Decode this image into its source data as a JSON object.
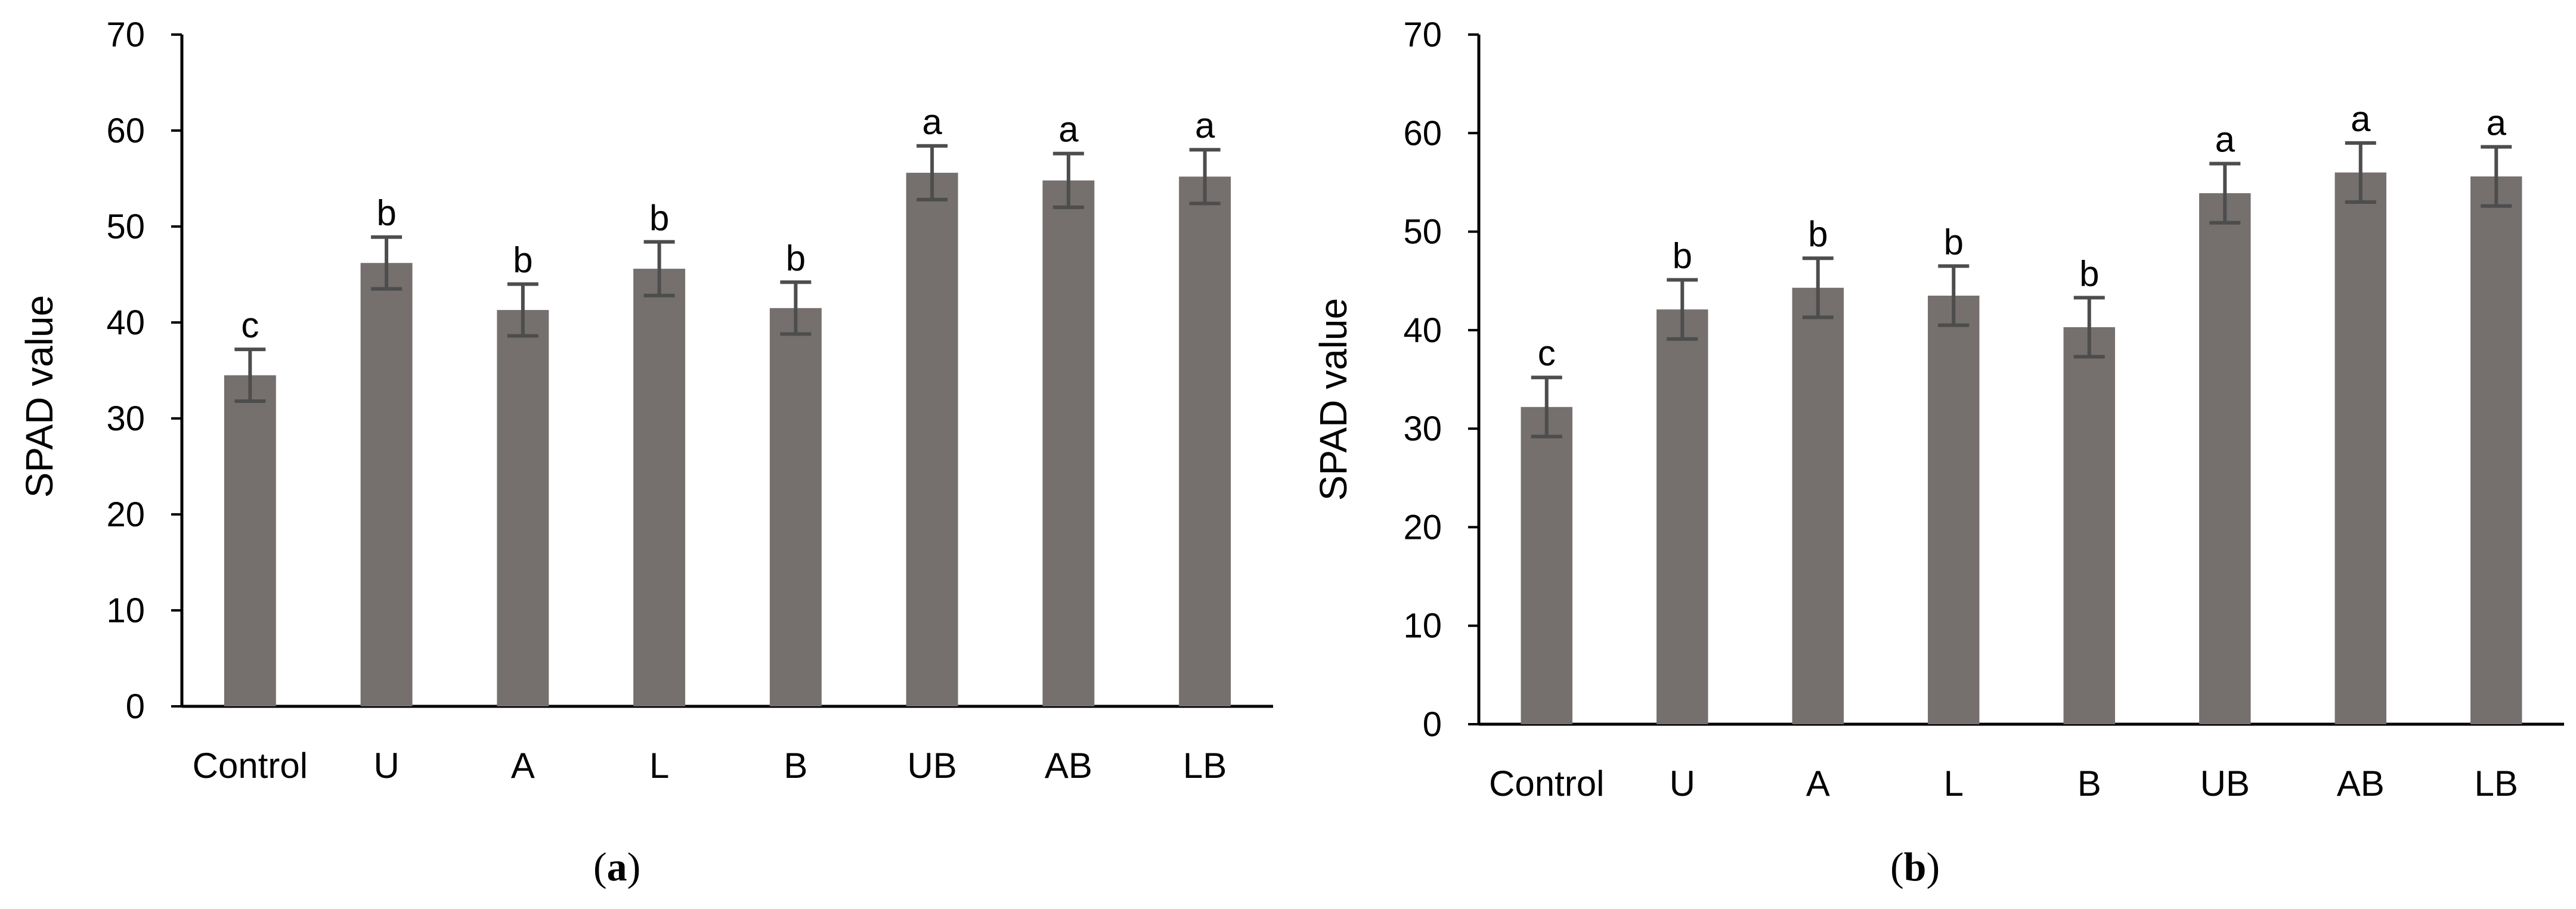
{
  "chart_data": [
    {
      "type": "bar",
      "panel_label": "a",
      "ylabel": "SPAD value",
      "ylim": [
        0,
        70
      ],
      "yticks": [
        0,
        10,
        20,
        30,
        40,
        50,
        60,
        70
      ],
      "categories": [
        "Control",
        "U",
        "A",
        "L",
        "B",
        "UB",
        "AB",
        "LB"
      ],
      "values": [
        34.5,
        46.2,
        41.3,
        45.6,
        41.5,
        55.6,
        54.8,
        55.2
      ],
      "errors": [
        2.7,
        2.7,
        2.7,
        2.8,
        2.7,
        2.8,
        2.8,
        2.8
      ],
      "letters": [
        "c",
        "b",
        "b",
        "b",
        "b",
        "a",
        "a",
        "a"
      ],
      "bar_color": "#756f6e",
      "grid": false
    },
    {
      "type": "bar",
      "panel_label": "b",
      "ylabel": "SPAD value",
      "ylim": [
        0,
        70
      ],
      "yticks": [
        0,
        10,
        20,
        30,
        40,
        50,
        60,
        70
      ],
      "categories": [
        "Control",
        "U",
        "A",
        "L",
        "B",
        "UB",
        "AB",
        "LB"
      ],
      "values": [
        32.2,
        42.1,
        44.3,
        43.5,
        40.3,
        53.9,
        56.0,
        55.6
      ],
      "errors": [
        3.0,
        3.0,
        3.0,
        3.0,
        3.0,
        3.0,
        3.0,
        3.0
      ],
      "letters": [
        "c",
        "b",
        "b",
        "b",
        "b",
        "a",
        "a",
        "a"
      ],
      "bar_color": "#756f6e",
      "grid": false
    }
  ]
}
